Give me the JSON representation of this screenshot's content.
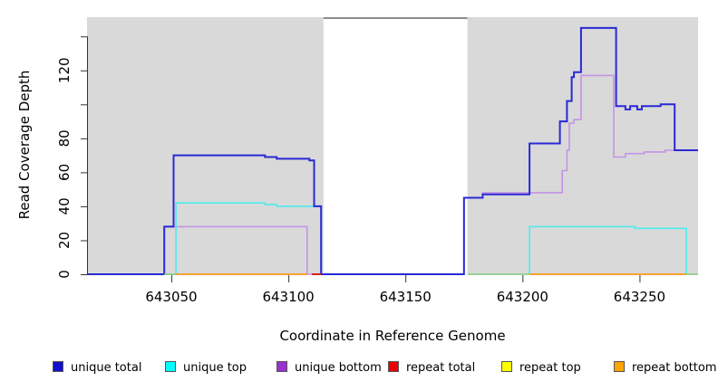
{
  "chart_data": {
    "type": "line",
    "step": true,
    "title": "",
    "xlabel": "Coordinate in Reference Genome",
    "ylabel": "Read Coverage Depth",
    "xlim": [
      643014,
      643275
    ],
    "ylim": [
      0,
      151
    ],
    "x_ticks": [
      643050,
      643100,
      643150,
      643200,
      643250
    ],
    "y_ticks": [
      {
        "v": 0,
        "label": "0"
      },
      {
        "v": 20,
        "label": "20"
      },
      {
        "v": 40,
        "label": "40"
      },
      {
        "v": 60,
        "label": "60"
      },
      {
        "v": 80,
        "label": "80"
      },
      {
        "v": 100,
        "label": ""
      },
      {
        "v": 120,
        "label": "120"
      },
      {
        "v": 140,
        "label": ""
      }
    ],
    "grid": false,
    "legend_position": "bottom",
    "background": {
      "panel_color": "#ffffff",
      "masked_region_color": "#d9d9d9",
      "masked_regions": [
        [
          643014,
          643115
        ],
        [
          643176.5,
          643275
        ]
      ],
      "gap_region": [
        643115,
        643176.5
      ],
      "gap_top_line_color": "#8c8c8c"
    },
    "series": [
      {
        "name": "unique bottom",
        "color": "#c493e6",
        "lw": 1.6,
        "segments": [
          [
            [
              643014,
              0
            ],
            [
              643047,
              0
            ],
            [
              643047,
              28
            ],
            [
              643108,
              28
            ],
            [
              643108,
              0
            ],
            [
              643175,
              0
            ],
            [
              643175,
              45
            ],
            [
              643183,
              45
            ],
            [
              643183,
              48
            ],
            [
              643217,
              48
            ],
            [
              643217,
              61
            ],
            [
              643219,
              61
            ],
            [
              643219,
              73
            ],
            [
              643220,
              73
            ],
            [
              643220,
              89
            ],
            [
              643222,
              89
            ],
            [
              643222,
              91
            ],
            [
              643225,
              91
            ],
            [
              643225,
              117
            ],
            [
              643239,
              117
            ],
            [
              643239,
              69
            ],
            [
              643244,
              69
            ],
            [
              643244,
              71
            ],
            [
              643252,
              71
            ],
            [
              643252,
              72
            ],
            [
              643261,
              72
            ],
            [
              643261,
              73
            ],
            [
              643275,
              73
            ]
          ]
        ]
      },
      {
        "name": "unique top",
        "color": "#4fecec",
        "lw": 1.6,
        "segments": [
          [
            [
              643047,
              0
            ],
            [
              643052,
              0
            ],
            [
              643052,
              42
            ],
            [
              643090,
              42
            ],
            [
              643090,
              41
            ],
            [
              643095,
              41
            ],
            [
              643095,
              40
            ],
            [
              643114,
              40
            ],
            [
              643114,
              0
            ]
          ],
          [
            [
              643203,
              0
            ],
            [
              643203,
              28
            ],
            [
              643248,
              28
            ],
            [
              643248,
              27
            ],
            [
              643270,
              27
            ],
            [
              643270,
              0
            ]
          ]
        ]
      },
      {
        "name": "unique total",
        "color": "#2929d6",
        "lw": 2,
        "segments": [
          [
            [
              643014,
              0
            ],
            [
              643047,
              0
            ],
            [
              643047,
              28
            ],
            [
              643051,
              28
            ],
            [
              643051,
              70
            ],
            [
              643090,
              70
            ],
            [
              643090,
              69
            ],
            [
              643095,
              69
            ],
            [
              643095,
              68
            ],
            [
              643109,
              68
            ],
            [
              643109,
              67
            ],
            [
              643111,
              67
            ],
            [
              643111,
              40
            ],
            [
              643114,
              40
            ],
            [
              643114,
              0
            ],
            [
              643175,
              0
            ],
            [
              643175,
              45
            ],
            [
              643183,
              45
            ],
            [
              643183,
              47
            ],
            [
              643203,
              47
            ],
            [
              643203,
              77
            ],
            [
              643216,
              77
            ],
            [
              643216,
              90
            ],
            [
              643219,
              90
            ],
            [
              643219,
              102
            ],
            [
              643221,
              102
            ],
            [
              643221,
              116
            ],
            [
              643222,
              116
            ],
            [
              643222,
              119
            ],
            [
              643225,
              119
            ],
            [
              643225,
              145
            ],
            [
              643240,
              145
            ],
            [
              643240,
              99
            ],
            [
              643244,
              99
            ],
            [
              643244,
              97
            ],
            [
              643246,
              97
            ],
            [
              643246,
              99
            ],
            [
              643249,
              99
            ],
            [
              643249,
              97
            ],
            [
              643251,
              97
            ],
            [
              643251,
              99
            ],
            [
              643259,
              99
            ],
            [
              643259,
              100
            ],
            [
              643265,
              100
            ],
            [
              643265,
              73
            ],
            [
              643275,
              73
            ]
          ]
        ]
      },
      {
        "name": "repeat total",
        "color": "#d92121",
        "lw": 2,
        "segments": [
          [
            [
              643110,
              0
            ],
            [
              643114,
              0
            ]
          ]
        ]
      },
      {
        "name": "repeat top",
        "color": "#8ccf8c",
        "lw": 1.8,
        "segments": [
          [
            [
              643047,
              0
            ],
            [
              643052,
              0
            ]
          ],
          [
            [
              643176.5,
              0
            ],
            [
              643203,
              0
            ]
          ],
          [
            [
              643270,
              0
            ],
            [
              643275,
              0
            ]
          ]
        ]
      },
      {
        "name": "repeat bottom",
        "color": "#ff9714",
        "lw": 1.8,
        "segments": [
          [
            [
              643052,
              0
            ],
            [
              643108,
              0
            ]
          ],
          [
            [
              643203,
              0
            ],
            [
              643270,
              0
            ]
          ]
        ]
      }
    ]
  },
  "legend": {
    "items": [
      {
        "label": "unique total",
        "swatch_color": "#1111cc"
      },
      {
        "label": "unique top",
        "swatch_color": "#00ffff"
      },
      {
        "label": "unique bottom",
        "swatch_color": "#9932cc"
      },
      {
        "label": "repeat total",
        "swatch_color": "#ee0000"
      },
      {
        "label": "repeat top",
        "swatch_color": "#ffff00"
      },
      {
        "label": "repeat bottom",
        "swatch_color": "#ffa500"
      }
    ]
  }
}
